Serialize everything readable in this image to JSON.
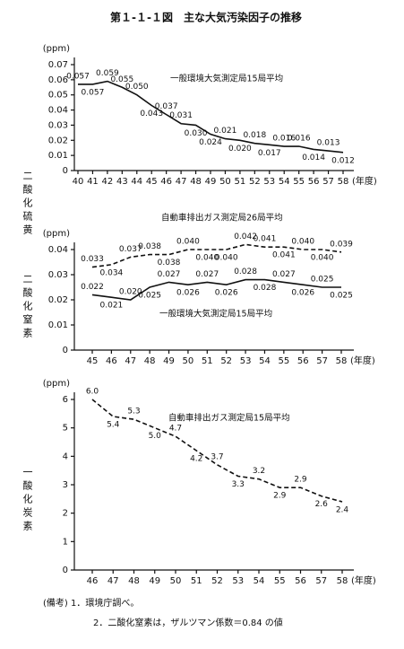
{
  "title": "第１-１-１図　主な大気汚染因子の推移",
  "notes": [
    "(備考) 1．環境庁調べ。",
    "2．二酸化窒素は，ザルツマン係数＝0.84 の値"
  ],
  "chart_data": [
    {
      "type": "line",
      "y_label": "二酸化硫黄",
      "y_unit": "(ppm)",
      "x_unit": "(年度)",
      "categories": [
        "40",
        "41",
        "42",
        "43",
        "44",
        "45",
        "46",
        "47",
        "48",
        "49",
        "50",
        "51",
        "52",
        "53",
        "54",
        "55",
        "56",
        "57",
        "58"
      ],
      "ylim": [
        0,
        0.07
      ],
      "yticks": [
        0,
        0.01,
        0.02,
        0.03,
        0.04,
        0.05,
        0.06,
        0.07
      ],
      "series": [
        {
          "name": "一般環境大気測定局15局平均",
          "color": "#111111",
          "line_style": "solid",
          "values": [
            0.057,
            0.057,
            0.059,
            0.055,
            0.05,
            0.043,
            0.037,
            0.031,
            0.03,
            0.024,
            0.021,
            0.02,
            0.018,
            0.017,
            0.016,
            0.016,
            0.014,
            0.013,
            0.012
          ],
          "value_labels": [
            "0.057",
            "0.057",
            "0.059",
            "0.055",
            "0.050",
            "0.043",
            "0.037",
            "0.031",
            "0.030",
            "0.024",
            "0.021",
            "0.020",
            "0.018",
            "0.017",
            "0.016",
            "0.016",
            "0.014",
            "0.013",
            "0.012"
          ]
        }
      ]
    },
    {
      "type": "line",
      "y_label": "二酸化窒素",
      "y_unit": "(ppm)",
      "x_unit": "(年度)",
      "categories": [
        "45",
        "46",
        "47",
        "48",
        "49",
        "50",
        "51",
        "52",
        "53",
        "54",
        "55",
        "56",
        "57",
        "58"
      ],
      "ylim": [
        0,
        0.04
      ],
      "yticks": [
        0,
        0.01,
        0.02,
        0.03,
        0.04
      ],
      "series": [
        {
          "name": "自動車排出ガス測定局26局平均",
          "color": "#111111",
          "line_style": "dashed",
          "values": [
            0.033,
            0.034,
            0.037,
            0.038,
            0.038,
            0.04,
            0.04,
            0.04,
            0.042,
            0.041,
            0.041,
            0.04,
            0.04,
            0.039
          ],
          "value_labels": [
            "0.033",
            "0.034",
            "0.037",
            "0.038",
            "0.038",
            "0.040",
            "0.040",
            "0.040",
            "0.042",
            "0.041",
            "0.041",
            "0.040",
            "0.040",
            "0.039"
          ]
        },
        {
          "name": "一般環境大気測定局15局平均",
          "color": "#111111",
          "line_style": "solid",
          "values": [
            0.022,
            0.021,
            0.02,
            0.025,
            0.027,
            0.026,
            0.027,
            0.026,
            0.028,
            0.028,
            0.027,
            0.026,
            0.025,
            0.025
          ],
          "value_labels": [
            "0.022",
            "0.021",
            "0.020",
            "0.025",
            "0.027",
            "0.026",
            "0.027",
            "0.026",
            "0.028",
            "0.028",
            "0.027",
            "0.026",
            "0.025",
            "0.025"
          ]
        }
      ]
    },
    {
      "type": "line",
      "y_label": "一酸化炭素",
      "y_unit": "(ppm)",
      "x_unit": "(年度)",
      "categories": [
        "46",
        "47",
        "48",
        "49",
        "50",
        "51",
        "52",
        "53",
        "54",
        "55",
        "56",
        "57",
        "58"
      ],
      "ylim": [
        0,
        6
      ],
      "yticks": [
        0,
        1,
        2,
        3,
        4,
        5,
        6
      ],
      "series": [
        {
          "name": "自動車排出ガス測定局15局平均",
          "color": "#111111",
          "line_style": "dashed",
          "values": [
            6.0,
            5.4,
            5.3,
            5.0,
            4.7,
            4.2,
            3.7,
            3.3,
            3.2,
            2.9,
            2.9,
            2.6,
            2.4
          ],
          "value_labels": [
            "6.0",
            "5.4",
            "5.3",
            "5.0",
            "4.7",
            "4.2",
            "3.7",
            "3.3",
            "3.2",
            "2.9",
            "2.9",
            "2.6",
            "2.4"
          ]
        }
      ]
    }
  ]
}
